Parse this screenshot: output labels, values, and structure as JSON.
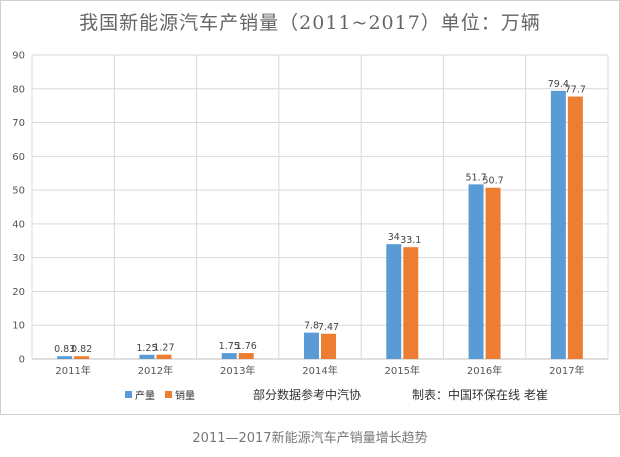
{
  "chart_data": {
    "type": "bar",
    "title": "我国新能源汽车产销量（2011~2017）单位：万辆",
    "categories": [
      "2011年",
      "2012年",
      "2013年",
      "2014年",
      "2015年",
      "2016年",
      "2017年"
    ],
    "series": [
      {
        "name": "产量",
        "values": [
          0.83,
          1.25,
          1.75,
          7.8,
          34,
          51.7,
          79.4
        ],
        "labels": [
          "0.83",
          "1.25",
          "1.75",
          "7.8",
          "34",
          "51.7",
          "79.4"
        ],
        "color": "#5b9bd5"
      },
      {
        "name": "销量",
        "values": [
          0.82,
          1.27,
          1.76,
          7.47,
          33.1,
          50.7,
          77.7
        ],
        "labels": [
          "0.82",
          "1.27",
          "1.76",
          "7.47",
          "33.1",
          "50.7",
          "77.7"
        ],
        "color": "#ed7d31"
      }
    ],
    "ylim": [
      0,
      90
    ],
    "yticks": [
      0,
      10,
      20,
      30,
      40,
      50,
      60,
      70,
      80,
      90
    ],
    "grid": true,
    "legend": "bottom-left"
  },
  "notes": {
    "source": "部分数据参考中汽协",
    "maker": "制表：中国环保在线 老崔"
  },
  "caption": "2011—2017新能源汽车产销量增长趋势"
}
